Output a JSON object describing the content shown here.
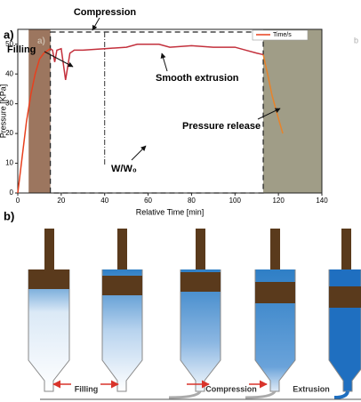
{
  "panel_a_label": "a)",
  "inset_label": "a)",
  "corner_label": "b",
  "chart_data": {
    "type": "line",
    "x_label": "Relative Time [min]",
    "y_label": "Pressure [KPa]",
    "xlim": [
      0,
      140
    ],
    "xticks": [
      0,
      20,
      40,
      60,
      80,
      100,
      120,
      140
    ],
    "ylim": [
      0,
      55
    ],
    "yticks": [
      0,
      10,
      20,
      30,
      40,
      50
    ],
    "legend": "upper right",
    "regions": [
      {
        "x": [
          5,
          15
        ],
        "color": "#8b5e43"
      },
      {
        "x": [
          113,
          140
        ],
        "color": "#8f8c72"
      }
    ],
    "series": [
      {
        "name": "Time/s",
        "color": "#e8401e",
        "x": [
          0,
          2,
          4,
          6,
          8,
          10,
          12,
          14,
          15
        ],
        "values": [
          0,
          12,
          24,
          33,
          40,
          45,
          47,
          48,
          48.5
        ]
      },
      {
        "color": "#c3303c",
        "x": [
          15,
          16,
          17,
          18,
          20,
          22,
          24,
          26,
          30,
          40,
          50,
          55,
          60,
          65,
          70,
          80,
          90,
          100,
          105,
          110,
          113
        ],
        "values": [
          48.5,
          48,
          44,
          48,
          48.5,
          38,
          47,
          48,
          48,
          48.5,
          49,
          50,
          50,
          50,
          49,
          49.5,
          49,
          49,
          48,
          47,
          46.5
        ]
      },
      {
        "color": "#e8832a",
        "x": [
          113,
          115,
          117,
          120,
          122
        ],
        "values": [
          46.5,
          40,
          33,
          25,
          20
        ]
      }
    ],
    "annotations": {
      "compression": "Compression",
      "filling": "Filling",
      "smooth": "Smooth extrusion",
      "release": "Pressure release",
      "ratio": "W/W₀"
    }
  },
  "panel_b": {
    "label": "b)",
    "steps": [
      "Filling",
      "Compression",
      "Extrusion"
    ]
  }
}
